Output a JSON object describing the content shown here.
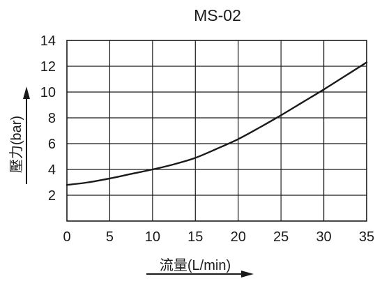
{
  "chart_data": {
    "type": "line",
    "title": "MS-02",
    "xlabel": "流量(L/min)",
    "ylabel": "壓力(bar)",
    "xlim": [
      0,
      35
    ],
    "ylim": [
      0,
      14
    ],
    "x_ticks": [
      0,
      5,
      10,
      15,
      20,
      25,
      30,
      35
    ],
    "y_ticks": [
      2,
      4,
      6,
      8,
      10,
      12,
      14
    ],
    "x_tick_labels": [
      "0",
      "5",
      "10",
      "15",
      "20",
      "25",
      "30",
      "35"
    ],
    "y_tick_labels": [
      "2",
      "4",
      "6",
      "8",
      "10",
      "12",
      "14"
    ],
    "grid": true,
    "series": [
      {
        "x": [
          0,
          2.5,
          5,
          7.5,
          10,
          12.5,
          15,
          17.5,
          20,
          22.5,
          25,
          27.5,
          30,
          32.5,
          35
        ],
        "values": [
          2.8,
          3.0,
          3.3,
          3.65,
          4.0,
          4.4,
          4.9,
          5.6,
          6.35,
          7.25,
          8.2,
          9.2,
          10.2,
          11.25,
          12.3
        ]
      }
    ],
    "colors": {
      "line": "#1a1a1a",
      "grid": "#1a1a1a"
    }
  }
}
